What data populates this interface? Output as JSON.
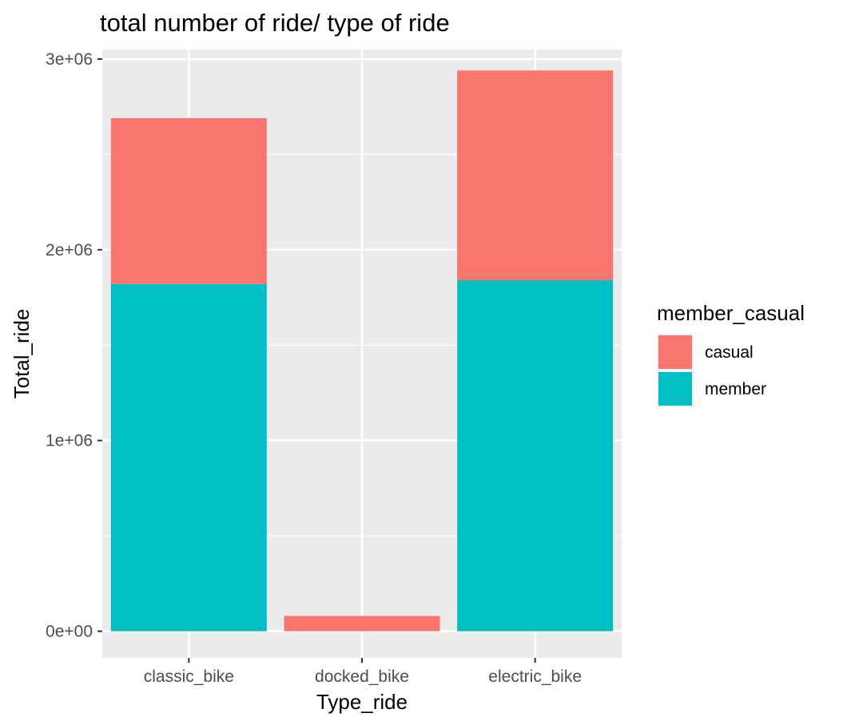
{
  "chart_data": {
    "type": "bar",
    "stacked": true,
    "title": "total number of ride/ type of ride",
    "xlabel": "Type_ride",
    "ylabel": "Total_ride",
    "categories": [
      "classic_bike",
      "docked_bike",
      "electric_bike"
    ],
    "series": [
      {
        "name": "casual",
        "color": "#F8766D",
        "values": [
          870000,
          80000,
          1100000
        ]
      },
      {
        "name": "member",
        "color": "#00BFC4",
        "values": [
          1820000,
          0,
          1840000
        ]
      }
    ],
    "ylim": [
      -140000,
      3050000
    ],
    "yticks": [
      {
        "value": 0,
        "label": "0e+00"
      },
      {
        "value": 1000000,
        "label": "1e+06"
      },
      {
        "value": 2000000,
        "label": "2e+06"
      },
      {
        "value": 3000000,
        "label": "3e+06"
      }
    ],
    "grid": true,
    "legend": {
      "title": "member_casual",
      "position": "right"
    },
    "colors": {
      "panel_background": "#EBEBEB",
      "grid": "#FFFFFF",
      "tick_text": "#4D4D4D",
      "tick_mark": "#333333"
    }
  }
}
